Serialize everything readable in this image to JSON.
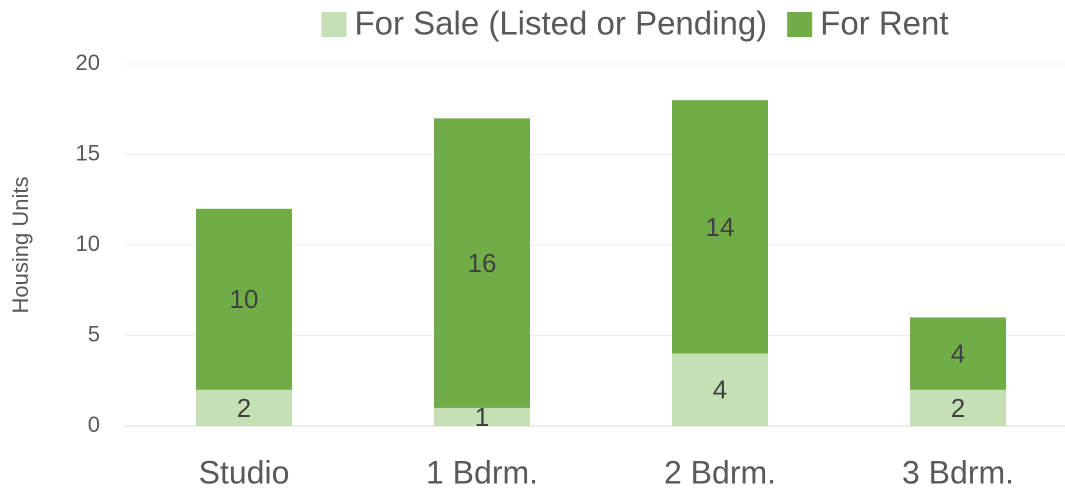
{
  "chart_data": {
    "type": "bar",
    "stacked": true,
    "y_label": "Housing Units",
    "categories": [
      "Studio",
      "1 Bdrm.",
      "2 Bdrm.",
      "3 Bdrm."
    ],
    "series": [
      {
        "name": "For Sale (Listed or Pending)",
        "color": "#c5e0b4",
        "values": [
          2,
          1,
          4,
          2
        ]
      },
      {
        "name": "For Rent",
        "color": "#70ad47",
        "values": [
          10,
          16,
          14,
          4
        ]
      }
    ],
    "ylim": [
      0,
      20
    ],
    "yticks": [
      0,
      5,
      10,
      15,
      20
    ],
    "grid": true,
    "legend": "top"
  }
}
